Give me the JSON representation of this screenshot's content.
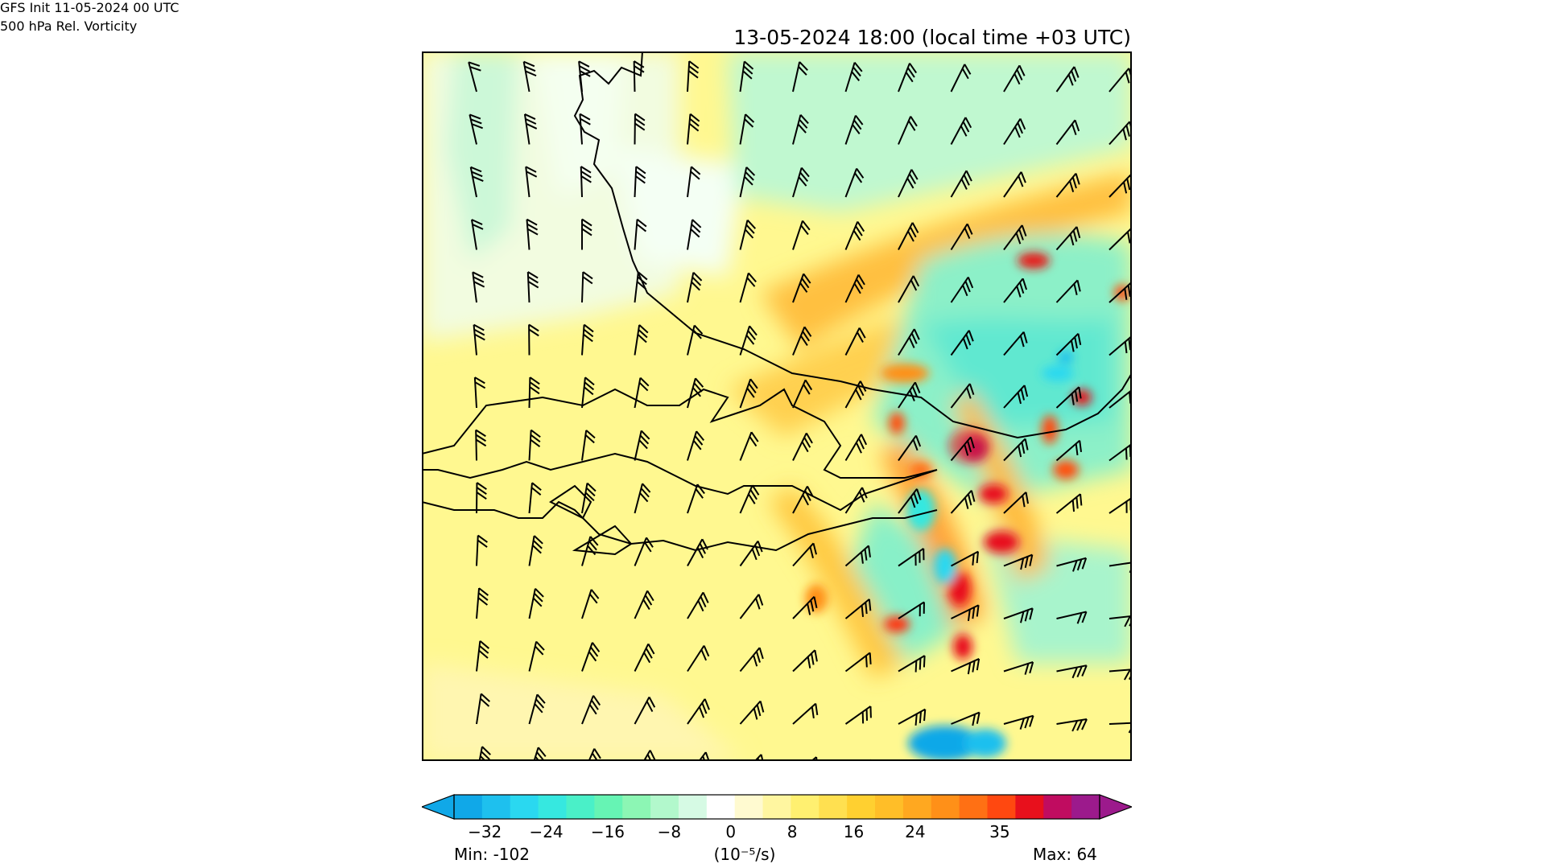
{
  "header": {
    "init": "GFS Init 11-05-2024 00 UTC",
    "field": "500 hPa Rel. Vorticity",
    "valid": "13-05-2024 18:00 (local time +03 UTC)"
  },
  "colorbar": {
    "ticks": [
      "−32",
      "−24",
      "−16",
      "−8",
      "0",
      "8",
      "16",
      "24",
      "35"
    ],
    "tick_values": [
      -32,
      -24,
      -16,
      -8,
      0,
      8,
      16,
      24,
      35
    ],
    "range": [
      -36,
      48
    ],
    "units": "(10⁻⁵/s)",
    "min_label": "Min: -102",
    "max_label": "Max: 64",
    "colors": [
      "#10a8e8",
      "#1ec0ee",
      "#2ad8f0",
      "#36e8e0",
      "#4af0c8",
      "#66f4b4",
      "#8cf6b4",
      "#b2f8cc",
      "#d6fae4",
      "#ffffff",
      "#fffad0",
      "#fff6a0",
      "#fff070",
      "#ffe050",
      "#ffd030",
      "#ffbe28",
      "#ffa820",
      "#ff9018",
      "#ff7014",
      "#ff4810",
      "#e8101c",
      "#c00c60",
      "#9c1a8c"
    ]
  }
}
